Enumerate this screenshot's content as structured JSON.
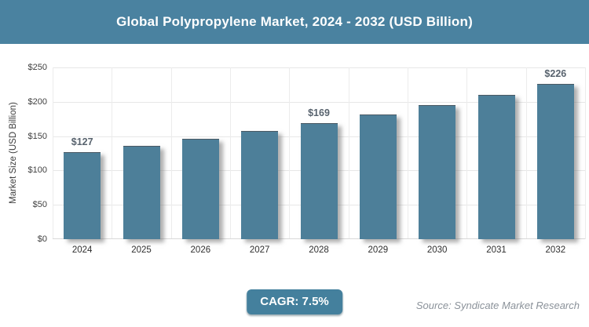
{
  "title": "Global Polypropylene Market, 2024 - 2032 (USD Billion)",
  "colors": {
    "banner": "#4a82a0",
    "bar": "#4d7f99",
    "badge": "#44809d",
    "grid": "#e7e7e7",
    "bar_label": "#58636e",
    "source_text": "#8b929a"
  },
  "chart_data": {
    "type": "bar",
    "title": "Global Polypropylene Market, 2024 - 2032 (USD Billion)",
    "categories": [
      "2024",
      "2025",
      "2026",
      "2027",
      "2028",
      "2029",
      "2030",
      "2031",
      "2032"
    ],
    "values": [
      127,
      136,
      146,
      157,
      169,
      182,
      195,
      210,
      226
    ],
    "bar_labels": [
      "$127",
      "",
      "",
      "",
      "$169",
      "",
      "",
      "",
      "$226"
    ],
    "xlabel": "",
    "ylabel": "Market Size (USD Billion)",
    "ylim": [
      0,
      250
    ],
    "ytick_step": 50,
    "ytick_labels": [
      "$0",
      "$50",
      "$100",
      "$150",
      "$200",
      "$250"
    ],
    "grid": true,
    "legend": false
  },
  "footer": {
    "cagr_label": "CAGR: 7.5%",
    "source": "Source: Syndicate Market Research"
  }
}
